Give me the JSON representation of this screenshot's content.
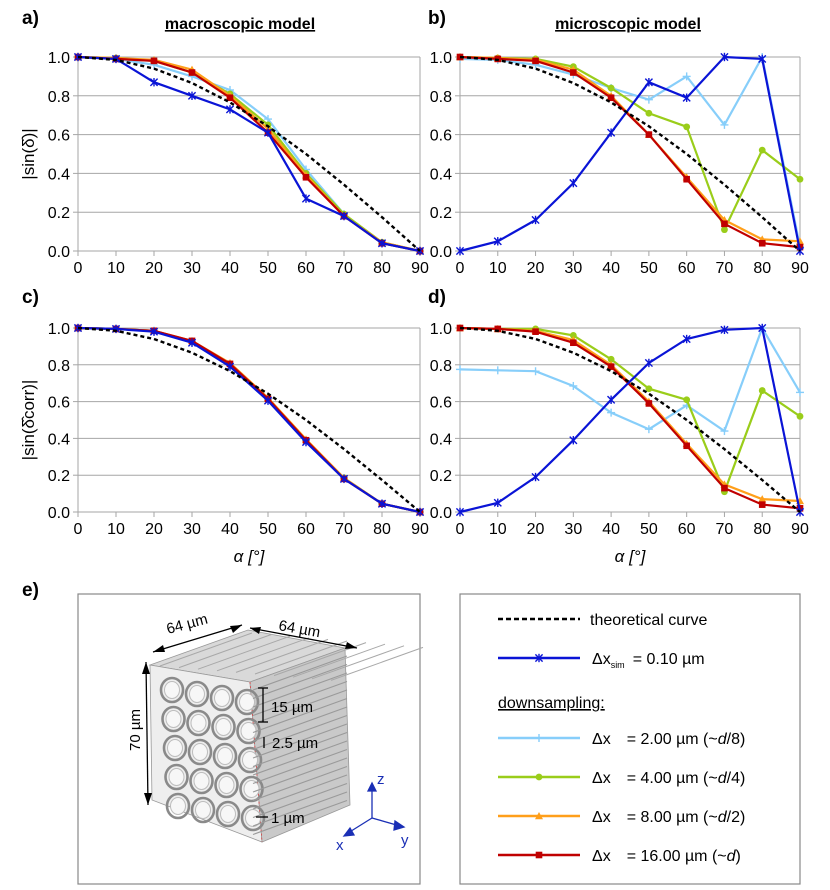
{
  "chart_data": [
    {
      "panel": "a)",
      "type": "line",
      "title": "macroscopic model",
      "ylabel": "|sin(δ̂)|",
      "xlabel": "",
      "x": [
        0,
        10,
        20,
        30,
        40,
        50,
        60,
        70,
        80,
        90
      ],
      "xlim": [
        0,
        90
      ],
      "ylim": [
        0,
        1
      ],
      "yticks": [
        "0.0",
        "0.2",
        "0.4",
        "0.6",
        "0.8",
        "1.0"
      ],
      "xticks": [
        "0",
        "10",
        "20",
        "30",
        "40",
        "50",
        "60",
        "70",
        "80",
        "90"
      ],
      "grid": "horizontal",
      "series": [
        {
          "name": "theoretical curve",
          "values": [
            1.0,
            0.985,
            0.94,
            0.866,
            0.766,
            0.643,
            0.5,
            0.342,
            0.174,
            0.0
          ]
        },
        {
          "name": "Δx = 2.00 µm (~d/8)",
          "values": [
            1.0,
            0.99,
            0.96,
            0.9,
            0.83,
            0.68,
            0.42,
            0.19,
            0.04,
            0.0
          ]
        },
        {
          "name": "Δx = 4.00 µm (~d/4)",
          "values": [
            1.0,
            0.995,
            0.98,
            0.92,
            0.81,
            0.65,
            0.4,
            0.19,
            0.045,
            0.0
          ]
        },
        {
          "name": "Δx = 8.00 µm (~d/2)",
          "values": [
            1.0,
            0.995,
            0.985,
            0.935,
            0.8,
            0.63,
            0.39,
            0.18,
            0.045,
            0.0
          ]
        },
        {
          "name": "Δx = 16.00 µm (~d)",
          "values": [
            1.0,
            0.99,
            0.98,
            0.92,
            0.79,
            0.61,
            0.38,
            0.18,
            0.04,
            0.0
          ]
        },
        {
          "name": "Δx sim = 0.10 µm",
          "values": [
            1.0,
            0.99,
            0.87,
            0.8,
            0.73,
            0.61,
            0.27,
            0.18,
            0.04,
            0.0
          ]
        }
      ]
    },
    {
      "panel": "b)",
      "type": "line",
      "title": "microscopic model",
      "ylabel": "",
      "xlabel": "",
      "x": [
        0,
        10,
        20,
        30,
        40,
        50,
        60,
        70,
        80,
        90
      ],
      "xlim": [
        0,
        90
      ],
      "ylim": [
        0,
        1
      ],
      "yticks": [
        "0.0",
        "0.2",
        "0.4",
        "0.6",
        "0.8",
        "1.0"
      ],
      "xticks": [
        "0",
        "10",
        "20",
        "30",
        "40",
        "50",
        "60",
        "70",
        "80",
        "90"
      ],
      "grid": "horizontal",
      "series": [
        {
          "name": "theoretical curve",
          "values": [
            1.0,
            0.985,
            0.94,
            0.866,
            0.766,
            0.643,
            0.5,
            0.342,
            0.174,
            0.0
          ]
        },
        {
          "name": "Δx = 2.00 µm (~d/8)",
          "values": [
            0.99,
            0.985,
            0.96,
            0.91,
            0.84,
            0.78,
            0.9,
            0.65,
            1.0,
            0.02
          ]
        },
        {
          "name": "Δx = 4.00 µm (~d/4)",
          "values": [
            1.0,
            0.995,
            0.99,
            0.95,
            0.84,
            0.71,
            0.64,
            0.11,
            0.52,
            0.37
          ]
        },
        {
          "name": "Δx = 8.00 µm (~d/2)",
          "values": [
            1.0,
            0.995,
            0.985,
            0.935,
            0.8,
            0.6,
            0.38,
            0.16,
            0.06,
            0.05
          ]
        },
        {
          "name": "Δx = 16.00 µm (~d)",
          "values": [
            1.0,
            0.99,
            0.98,
            0.92,
            0.79,
            0.6,
            0.37,
            0.14,
            0.04,
            0.02
          ]
        },
        {
          "name": "Δx sim = 0.10 µm",
          "values": [
            0.0,
            0.05,
            0.16,
            0.35,
            0.61,
            0.87,
            0.79,
            1.0,
            0.99,
            0.0
          ]
        }
      ]
    },
    {
      "panel": "c)",
      "type": "line",
      "title": "",
      "ylabel": "|sin(δ̂corr)|",
      "xlabel": "α [°]",
      "x": [
        0,
        10,
        20,
        30,
        40,
        50,
        60,
        70,
        80,
        90
      ],
      "xlim": [
        0,
        90
      ],
      "ylim": [
        0,
        1
      ],
      "yticks": [
        "0.0",
        "0.2",
        "0.4",
        "0.6",
        "0.8",
        "1.0"
      ],
      "xticks": [
        "0",
        "10",
        "20",
        "30",
        "40",
        "50",
        "60",
        "70",
        "80",
        "90"
      ],
      "grid": "horizontal",
      "series": [
        {
          "name": "theoretical curve",
          "values": [
            1.0,
            0.985,
            0.94,
            0.866,
            0.766,
            0.643,
            0.5,
            0.342,
            0.174,
            0.0
          ]
        },
        {
          "name": "Δx = 2.00 µm (~d/8)",
          "values": [
            1.0,
            0.995,
            0.985,
            0.925,
            0.8,
            0.615,
            0.39,
            0.185,
            0.045,
            0.0
          ]
        },
        {
          "name": "Δx = 4.00 µm (~d/4)",
          "values": [
            1.0,
            0.995,
            0.985,
            0.925,
            0.805,
            0.617,
            0.39,
            0.185,
            0.045,
            0.0
          ]
        },
        {
          "name": "Δx = 8.00 µm (~d/2)",
          "values": [
            1.0,
            0.995,
            0.985,
            0.93,
            0.81,
            0.62,
            0.395,
            0.185,
            0.045,
            0.0
          ]
        },
        {
          "name": "Δx = 16.00 µm (~d)",
          "values": [
            1.0,
            0.995,
            0.985,
            0.93,
            0.805,
            0.615,
            0.39,
            0.18,
            0.045,
            0.0
          ]
        },
        {
          "name": "Δx sim = 0.10 µm",
          "values": [
            1.0,
            0.995,
            0.98,
            0.92,
            0.79,
            0.605,
            0.38,
            0.18,
            0.045,
            0.0
          ]
        }
      ]
    },
    {
      "panel": "d)",
      "type": "line",
      "title": "",
      "ylabel": "",
      "xlabel": "α [°]",
      "x": [
        0,
        10,
        20,
        30,
        40,
        50,
        60,
        70,
        80,
        90
      ],
      "xlim": [
        0,
        90
      ],
      "ylim": [
        0,
        1
      ],
      "yticks": [
        "0.0",
        "0.2",
        "0.4",
        "0.6",
        "0.8",
        "1.0"
      ],
      "xticks": [
        "0",
        "10",
        "20",
        "30",
        "40",
        "50",
        "60",
        "70",
        "80",
        "90"
      ],
      "grid": "horizontal",
      "series": [
        {
          "name": "theoretical curve",
          "values": [
            1.0,
            0.985,
            0.94,
            0.866,
            0.766,
            0.643,
            0.5,
            0.342,
            0.174,
            0.0
          ]
        },
        {
          "name": "Δx = 2.00 µm (~d/8)",
          "values": [
            0.775,
            0.77,
            0.765,
            0.685,
            0.54,
            0.45,
            0.58,
            0.44,
            1.0,
            0.65
          ]
        },
        {
          "name": "Δx = 4.00 µm (~d/4)",
          "values": [
            1.0,
            0.995,
            0.995,
            0.96,
            0.83,
            0.67,
            0.61,
            0.11,
            0.66,
            0.52
          ]
        },
        {
          "name": "Δx = 8.00 µm (~d/2)",
          "values": [
            1.0,
            0.995,
            0.985,
            0.935,
            0.8,
            0.6,
            0.37,
            0.15,
            0.07,
            0.06
          ]
        },
        {
          "name": "Δx = 16.00 µm (~d)",
          "values": [
            1.0,
            0.995,
            0.98,
            0.92,
            0.79,
            0.59,
            0.36,
            0.13,
            0.04,
            0.02
          ]
        },
        {
          "name": "Δx sim = 0.10 µm",
          "values": [
            0.0,
            0.05,
            0.19,
            0.39,
            0.61,
            0.81,
            0.94,
            0.99,
            1.0,
            0.0
          ]
        }
      ]
    }
  ],
  "series_styles": [
    {
      "color": "#000000",
      "marker": "none",
      "dash": true
    },
    {
      "color": "#87cefa",
      "marker": "plus"
    },
    {
      "color": "#9acd1a",
      "marker": "circle"
    },
    {
      "color": "#ff9f1a",
      "marker": "triangle"
    },
    {
      "color": "#c00000",
      "marker": "square"
    },
    {
      "color": "#0a14d6",
      "marker": "star"
    }
  ],
  "panel_e": {
    "label": "e)",
    "dim_width_1": "64 µm",
    "dim_width_2": "64 µm",
    "dim_height": "70 µm",
    "dim_15": "15 µm",
    "dim_25": "2.5 µm",
    "dim_1": "1 µm",
    "axis_z": "z",
    "axis_x": "x",
    "axis_y": "y"
  },
  "legend": {
    "theory_label": "theoretical curve",
    "sim_label_delta": "Δx",
    "sim_label_sub": "sim",
    "sim_label_value": "= 0.10 µm",
    "heading": "downsampling:",
    "rows": [
      {
        "sym": "Δx",
        "value": "= 2.00 µm (~",
        "d": "d",
        "tail": "/8)"
      },
      {
        "sym": "Δx",
        "value": "= 4.00 µm (~",
        "d": "d",
        "tail": "/4)"
      },
      {
        "sym": "Δx",
        "value": "= 8.00 µm (~",
        "d": "d",
        "tail": "/2)"
      },
      {
        "sym": "Δx",
        "value": "= 16.00 µm (~",
        "d": "d",
        "tail": ")"
      }
    ]
  }
}
